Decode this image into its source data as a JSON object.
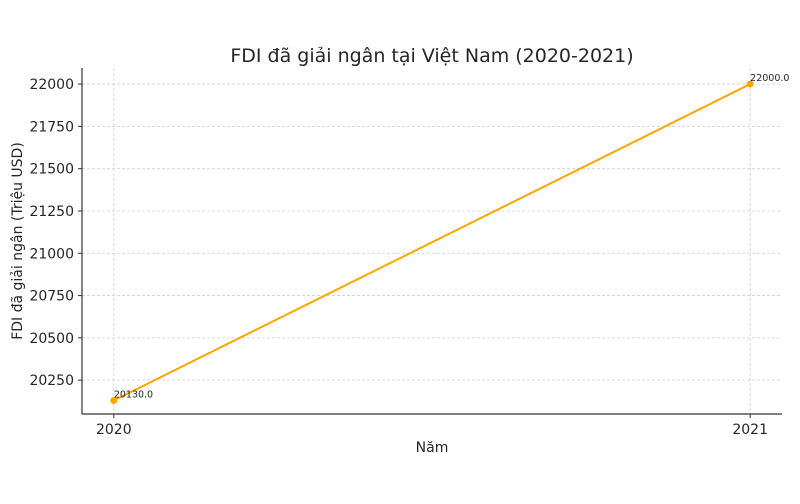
{
  "chart_data": {
    "type": "line",
    "title": "FDI đã giải ngân tại Việt Nam (2020-2021)",
    "xlabel": "Năm",
    "ylabel": "FDI đã giải ngân (Triệu USD)",
    "x": [
      2020,
      2021
    ],
    "x_tick_labels": [
      "2020",
      "2021"
    ],
    "xlim": [
      2019.95,
      2021.05
    ],
    "ylim": [
      20050,
      22095
    ],
    "y_ticks": [
      20250,
      20500,
      20750,
      21000,
      21250,
      21500,
      21750,
      22000
    ],
    "y_tick_labels": [
      "20250",
      "20500",
      "20750",
      "21000",
      "21250",
      "21500",
      "21750",
      "22000"
    ],
    "series": [
      {
        "values": [
          20130.0,
          22000.0
        ],
        "data_labels": [
          "20130.0",
          "22000.0"
        ],
        "color": "#FFA500",
        "marker": "circle"
      }
    ],
    "grid": true,
    "grid_style": "dashed",
    "legend": "none"
  }
}
